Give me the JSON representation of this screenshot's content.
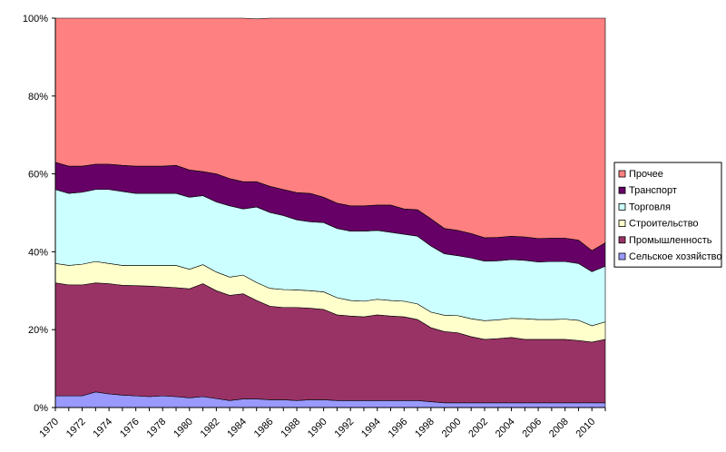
{
  "chart_data": {
    "type": "area",
    "stacked": true,
    "percent": true,
    "x": [
      1970,
      1971,
      1972,
      1973,
      1974,
      1975,
      1976,
      1977,
      1978,
      1979,
      1980,
      1981,
      1982,
      1983,
      1984,
      1985,
      1986,
      1987,
      1988,
      1989,
      1990,
      1991,
      1992,
      1993,
      1994,
      1995,
      1996,
      1997,
      1998,
      1999,
      2000,
      2001,
      2002,
      2003,
      2004,
      2005,
      2006,
      2007,
      2008,
      2009,
      2010,
      2011
    ],
    "x_tick_labels": [
      "1970",
      "1972",
      "1974",
      "1976",
      "1978",
      "1980",
      "1982",
      "1984",
      "1986",
      "1988",
      "1990",
      "1992",
      "1994",
      "1996",
      "1998",
      "2000",
      "2002",
      "2004",
      "2006",
      "2008",
      "2010"
    ],
    "y_tick_labels": [
      "0%",
      "20%",
      "40%",
      "60%",
      "80%",
      "100%"
    ],
    "ylim": [
      0,
      100
    ],
    "grid": false,
    "legend_position": "right",
    "series": [
      {
        "name": "Сельское хозяйство",
        "color": "#9999ff",
        "values": [
          3,
          3,
          3,
          4,
          3.5,
          3.2,
          3,
          2.8,
          3,
          2.8,
          2.5,
          2.8,
          2.3,
          1.8,
          2.2,
          2.2,
          2,
          2,
          1.8,
          2,
          2,
          1.8,
          1.8,
          1.8,
          1.8,
          1.8,
          1.8,
          1.8,
          1.5,
          1.2,
          1.2,
          1.2,
          1.2,
          1.2,
          1.2,
          1.2,
          1.2,
          1.2,
          1.2,
          1.2,
          1.2,
          1.2
        ]
      },
      {
        "name": "Промышленность",
        "color": "#993366",
        "values": [
          29,
          28.5,
          28.5,
          28,
          28.3,
          28.2,
          28.3,
          28.4,
          28,
          28,
          28,
          29,
          27.7,
          27,
          27,
          25.3,
          24,
          23.7,
          23.9,
          23.5,
          23.2,
          22,
          21.7,
          21.5,
          22,
          21.7,
          21.5,
          20.8,
          19,
          18.3,
          18,
          17,
          16.3,
          16.5,
          16.8,
          16.3,
          16.3,
          16.3,
          16.3,
          16,
          15.6,
          16.3
        ]
      },
      {
        "name": "Строительство",
        "color": "#ffffcc",
        "values": [
          5,
          5,
          5.3,
          5.5,
          5.2,
          5.1,
          5.2,
          5.3,
          5.5,
          5.7,
          5,
          4.9,
          4.8,
          4.7,
          4.8,
          4.6,
          4.6,
          4.6,
          4.5,
          4.5,
          4.5,
          4.4,
          4,
          4,
          4,
          4,
          4,
          4,
          4,
          4.2,
          4.4,
          4.6,
          4.8,
          4.8,
          4.9,
          5.3,
          5.1,
          5.1,
          5.2,
          5.2,
          4.2,
          4.5
        ]
      },
      {
        "name": "Торговля",
        "color": "#ccffff",
        "values": [
          19,
          18.5,
          18.5,
          18.5,
          19,
          19,
          18.5,
          18.5,
          18.5,
          18.5,
          18.5,
          17.7,
          18,
          18.3,
          17,
          19.4,
          19.5,
          19,
          18,
          17.7,
          17.8,
          17.8,
          17.8,
          18,
          17.7,
          17.5,
          17.2,
          17.4,
          17,
          15.8,
          15.4,
          15.6,
          15.3,
          15.2,
          15.1,
          15,
          14.8,
          14.9,
          14.8,
          14.6,
          13.9,
          14.3
        ]
      },
      {
        "name": "Транспорт",
        "color": "#660066",
        "values": [
          7,
          7,
          6.7,
          6.5,
          6.5,
          6.7,
          7,
          7,
          7,
          7.2,
          7,
          6.2,
          7.2,
          7,
          7,
          6.5,
          6.7,
          6.7,
          7,
          7.3,
          6.5,
          6.5,
          6.5,
          6.5,
          6.5,
          7,
          6.5,
          6.8,
          7,
          6.5,
          6.5,
          6.3,
          6,
          6,
          6,
          6,
          6,
          6,
          6,
          6,
          5.4,
          6
        ]
      },
      {
        "name": "Прочее",
        "color": "#ff8080",
        "values": [
          37,
          38,
          38,
          37.5,
          37.5,
          37.8,
          38,
          38,
          38,
          38.8,
          39,
          39.4,
          40,
          41.2,
          42,
          41.8,
          43.2,
          44,
          44.8,
          45,
          46,
          47.5,
          48.2,
          48.2,
          48,
          48,
          49,
          49.2,
          51.5,
          54,
          54.5,
          55.3,
          56.4,
          56.3,
          56,
          56.2,
          56.6,
          56.5,
          56.5,
          57,
          59.7,
          57.7
        ]
      }
    ]
  }
}
